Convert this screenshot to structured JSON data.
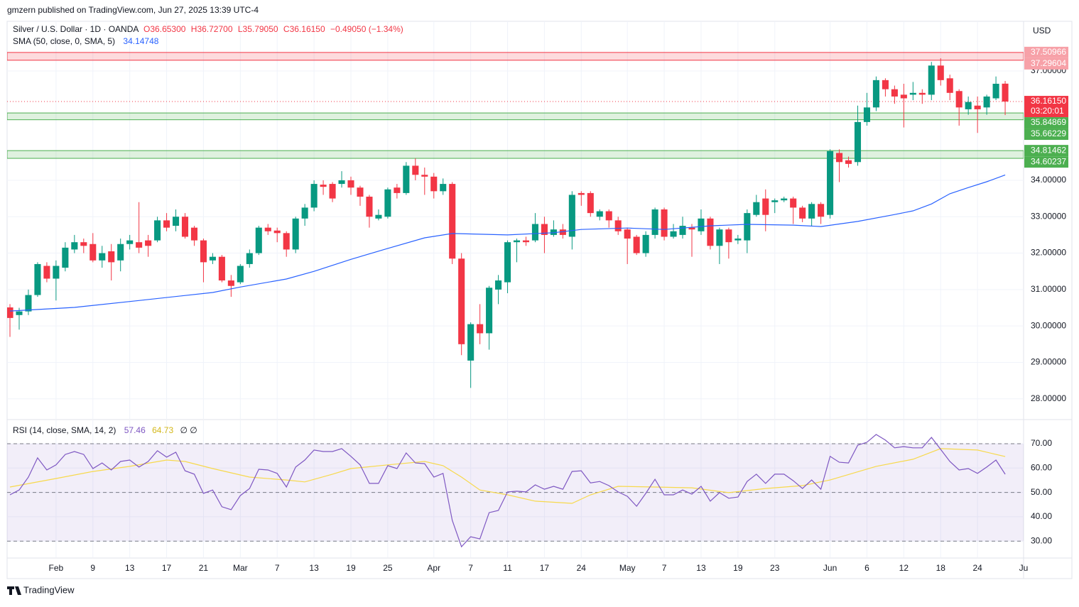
{
  "header": {
    "published": "gmzern published on TradingView.com, Jun 27, 2025 13:39 UTC-4"
  },
  "footer": {
    "brand": "TradingView"
  },
  "chart_data": {
    "type": "candlestick",
    "title": "Silver / U.S. Dollar · 1D · OANDA",
    "ohlc_legend": {
      "open": "O36.65300",
      "high": "H36.72700",
      "low": "L35.79050",
      "close": "C36.16150",
      "change": "−0.49050 (−1.34%)"
    },
    "currency": "USD",
    "up_color": "#089981",
    "down_color": "#f23645",
    "open": [
      30.51,
      30.3,
      30.4,
      30.85,
      31.65,
      31.3,
      31.6,
      32.1,
      32.3,
      32.25,
      31.8,
      32.05,
      31.8,
      32.25,
      32.3,
      32.35,
      32.35,
      32.9,
      32.75,
      33.0,
      32.7,
      32.35,
      31.8,
      31.9,
      31.25,
      31.2,
      31.7,
      32.0,
      32.7,
      32.62,
      32.55,
      32.1,
      32.95,
      33.25,
      33.88,
      33.9,
      33.9,
      34.0,
      33.8,
      33.55,
      32.95,
      33.0,
      33.8,
      33.65,
      34.4,
      34.15,
      34.1,
      33.7,
      33.9,
      31.85,
      29.05,
      30.05,
      29.8,
      31.0,
      31.2,
      32.3,
      32.35,
      32.35,
      32.8,
      32.5,
      32.65,
      32.45,
      33.65,
      33.65,
      33.0,
      33.15,
      32.9,
      32.65,
      32.45,
      32.0,
      32.5,
      33.2,
      32.45,
      32.5,
      32.7,
      32.6,
      32.95,
      32.2,
      32.65,
      32.35,
      32.35,
      33.05,
      33.5,
      33.4,
      33.45,
      33.5,
      33.25,
      32.95,
      33.35,
      33.05,
      34.75,
      34.55,
      34.5,
      35.6,
      36.0,
      36.75,
      36.5,
      36.35,
      36.35,
      36.4,
      36.35,
      37.15,
      36.8,
      36.45,
      35.95,
      36.05,
      36.0,
      36.25,
      36.653
    ],
    "high": [
      30.6,
      30.5,
      31.0,
      31.75,
      31.75,
      31.8,
      32.3,
      32.5,
      32.4,
      32.55,
      32.2,
      32.25,
      32.4,
      32.5,
      33.4,
      32.5,
      33.0,
      33.1,
      33.2,
      33.1,
      32.75,
      32.4,
      32.0,
      31.95,
      31.4,
      31.7,
      32.1,
      32.75,
      32.8,
      32.7,
      32.6,
      33.0,
      33.35,
      34.0,
      34.0,
      33.95,
      34.25,
      34.1,
      33.85,
      33.6,
      33.2,
      33.8,
      33.9,
      34.5,
      34.6,
      34.35,
      34.2,
      34.05,
      33.95,
      32.0,
      30.1,
      30.6,
      31.1,
      31.4,
      32.35,
      32.4,
      32.45,
      33.1,
      33.0,
      32.9,
      32.8,
      33.7,
      33.7,
      33.7,
      33.2,
      33.2,
      33.0,
      32.7,
      32.5,
      32.6,
      33.25,
      33.25,
      32.8,
      33.0,
      32.8,
      33.2,
      33.0,
      32.7,
      32.7,
      32.5,
      33.2,
      33.6,
      33.75,
      33.5,
      33.55,
      33.55,
      33.3,
      33.4,
      33.4,
      34.85,
      34.85,
      34.65,
      36.05,
      36.4,
      36.85,
      36.8,
      36.6,
      36.65,
      36.7,
      36.5,
      37.25,
      37.35,
      36.9,
      36.5,
      36.3,
      36.3,
      36.35,
      36.85,
      36.727
    ],
    "low": [
      29.7,
      29.9,
      30.3,
      30.8,
      31.2,
      30.7,
      31.5,
      32.0,
      32.0,
      31.75,
      31.6,
      31.25,
      31.5,
      32.1,
      32.0,
      31.9,
      32.3,
      32.6,
      32.6,
      32.4,
      32.2,
      31.2,
      31.7,
      31.2,
      30.8,
      31.15,
      31.6,
      31.95,
      32.5,
      32.3,
      31.9,
      32.0,
      32.75,
      33.15,
      33.6,
      33.4,
      33.8,
      33.6,
      33.3,
      32.7,
      32.9,
      32.95,
      33.5,
      33.6,
      34.0,
      33.6,
      33.5,
      33.6,
      31.7,
      29.2,
      28.3,
      29.5,
      29.35,
      30.6,
      30.9,
      31.75,
      32.2,
      32.3,
      32.0,
      32.45,
      32.4,
      32.1,
      33.3,
      33.0,
      32.9,
      32.7,
      32.5,
      31.7,
      31.95,
      31.9,
      32.4,
      32.35,
      32.4,
      32.4,
      31.9,
      32.5,
      32.1,
      31.7,
      31.85,
      32.25,
      32.0,
      33.0,
      32.6,
      33.1,
      33.4,
      32.8,
      32.85,
      32.75,
      32.8,
      32.95,
      33.95,
      34.35,
      34.4,
      35.5,
      35.9,
      36.3,
      36.1,
      35.45,
      36.2,
      36.1,
      36.2,
      36.6,
      36.2,
      35.5,
      35.8,
      35.3,
      35.8,
      36.2,
      35.7905
    ],
    "close": [
      30.22,
      30.4,
      30.85,
      31.7,
      31.3,
      31.65,
      32.15,
      32.3,
      32.2,
      31.8,
      32.0,
      31.75,
      32.25,
      32.35,
      32.15,
      32.2,
      32.9,
      32.7,
      33.0,
      32.45,
      32.35,
      31.75,
      31.9,
      31.25,
      31.1,
      31.65,
      32.0,
      32.7,
      32.6,
      32.55,
      32.1,
      32.95,
      33.25,
      33.9,
      33.82,
      33.5,
      34.0,
      33.8,
      33.55,
      33.0,
      33.05,
      33.75,
      33.65,
      34.4,
      34.15,
      34.1,
      33.7,
      33.9,
      31.85,
      29.5,
      30.05,
      29.8,
      31.05,
      31.25,
      32.3,
      32.35,
      32.3,
      32.8,
      32.5,
      32.65,
      32.5,
      33.6,
      33.6,
      33.1,
      33.15,
      32.9,
      32.6,
      32.4,
      32.0,
      32.5,
      33.2,
      32.45,
      32.6,
      32.75,
      32.65,
      32.95,
      32.2,
      32.65,
      32.3,
      32.4,
      33.1,
      33.4,
      33.05,
      33.45,
      33.5,
      33.25,
      32.95,
      33.35,
      33.0,
      34.8,
      34.5,
      34.45,
      35.6,
      36.0,
      36.75,
      36.5,
      36.3,
      36.25,
      36.4,
      36.35,
      37.15,
      36.75,
      36.4,
      36.0,
      36.15,
      35.95,
      36.3,
      36.65,
      36.1615
    ],
    "xlim": [
      -0.31,
      110.0
    ],
    "xticks": [
      {
        "value": 5,
        "label": "Feb"
      },
      9,
      13,
      17,
      21,
      {
        "value": 25,
        "label": "Mar"
      },
      {
        "value": 29,
        "label": "7"
      },
      {
        "value": 33,
        "label": "13"
      },
      {
        "value": 37,
        "label": "19"
      },
      {
        "value": 41,
        "label": "25"
      },
      {
        "value": 46,
        "label": "Apr"
      },
      {
        "value": 50,
        "label": "7"
      },
      {
        "value": 54,
        "label": "11"
      },
      {
        "value": 58,
        "label": "17"
      },
      {
        "value": 62,
        "label": "24"
      },
      {
        "value": 67,
        "label": "May"
      },
      {
        "value": 71,
        "label": "7"
      },
      {
        "value": 75,
        "label": "13"
      },
      {
        "value": 79,
        "label": "19"
      },
      {
        "value": 83,
        "label": "23"
      },
      {
        "value": 89,
        "label": "Jun"
      },
      {
        "value": 93,
        "label": "6"
      },
      {
        "value": 97,
        "label": "12"
      },
      {
        "value": 101,
        "label": "18"
      },
      {
        "value": 105,
        "label": "24"
      },
      {
        "value": 110,
        "label": "Ju"
      }
    ],
    "ylim": [
      27.45,
      38.365
    ],
    "yticks": [
      {
        "value": 28,
        "label": "28.00000"
      },
      {
        "value": 29,
        "label": "29.00000"
      },
      {
        "value": 30,
        "label": "30.00000"
      },
      {
        "value": 31,
        "label": "31.00000"
      },
      {
        "value": 32,
        "label": "32.00000"
      },
      {
        "value": 33,
        "label": "33.00000"
      },
      {
        "value": 34,
        "label": "34.00000"
      },
      {
        "value": 37,
        "label": "37.00000"
      }
    ],
    "grid": true,
    "sma": {
      "name": "SMA (50, close, 0, SMA, 5)",
      "color": "#2962ff",
      "x": [
        0,
        7,
        14,
        22,
        25,
        30,
        33,
        37,
        41,
        45,
        48,
        54,
        59,
        62,
        67,
        71,
        76,
        80,
        85,
        88,
        92,
        96,
        98,
        100,
        102,
        104,
        106,
        108
      ],
      "values": [
        30.41,
        30.51,
        30.7,
        30.92,
        31.07,
        31.29,
        31.5,
        31.83,
        32.13,
        32.42,
        32.54,
        32.5,
        32.56,
        32.65,
        32.69,
        32.65,
        32.75,
        32.79,
        32.77,
        32.73,
        32.87,
        33.06,
        33.16,
        33.35,
        33.63,
        33.8,
        33.96,
        34.14748
      ]
    },
    "zones": [
      {
        "top": 37.50966,
        "bottom": 37.29604,
        "color": "#f23645"
      },
      {
        "top": 35.84869,
        "bottom": 35.66229,
        "color": "#4caf50"
      },
      {
        "top": 34.81462,
        "bottom": 34.60237,
        "color": "#4caf50"
      }
    ],
    "last_price": {
      "value": 36.1615,
      "label": "36.16150",
      "countdown": "03:20:01"
    },
    "rsi": {
      "title": "RSI (14, close, SMA, 14, 2)",
      "color": "#7e57c2",
      "extra": "∅ ∅",
      "values": [
        49.0,
        51.0,
        56.3,
        64.2,
        59.2,
        61.3,
        65.6,
        66.8,
        65.6,
        59.8,
        62.1,
        59.2,
        62.7,
        63.3,
        60.4,
        62.7,
        67.1,
        64.5,
        66.5,
        58.9,
        57.5,
        49.6,
        51.0,
        44.1,
        42.9,
        48.7,
        51.6,
        59.5,
        59.2,
        57.8,
        52.2,
        60.4,
        63.3,
        67.4,
        66.8,
        66.8,
        68.0,
        64.8,
        61.3,
        53.7,
        53.7,
        61.0,
        59.8,
        66.2,
        62.1,
        61.8,
        56.3,
        57.8,
        38.5,
        27.7,
        31.8,
        30.9,
        41.7,
        42.6,
        50.2,
        50.5,
        50.2,
        53.1,
        51.3,
        52.5,
        51.3,
        58.6,
        58.9,
        53.9,
        54.5,
        52.8,
        50.2,
        48.4,
        44.3,
        49.6,
        55.4,
        49.0,
        49.0,
        51.0,
        49.3,
        52.5,
        46.4,
        49.9,
        47.6,
        48.1,
        54.5,
        57.5,
        53.7,
        57.5,
        57.5,
        54.8,
        51.6,
        55.1,
        51.3,
        64.8,
        62.4,
        62.1,
        69.4,
        70.6,
        73.8,
        71.5,
        68.3,
        68.8,
        68.3,
        68.3,
        72.6,
        67.7,
        62.7,
        59.2,
        59.8,
        57.8,
        60.4,
        63.3,
        57.46
      ],
      "sma": {
        "color": "#f7d94c",
        "x": [
          0,
          5,
          9,
          13,
          17,
          19,
          22,
          26,
          30,
          32,
          35,
          37,
          41,
          45,
          47,
          49,
          51,
          54,
          57,
          61,
          63,
          66,
          70,
          74,
          78,
          82,
          86,
          89,
          94,
          98,
          101,
          105,
          108
        ],
        "values": [
          52.2,
          55.7,
          58.6,
          60.7,
          63.3,
          62.7,
          59.8,
          56.3,
          55.1,
          54.3,
          57.5,
          59.8,
          61.3,
          62.7,
          61.0,
          56.3,
          51.0,
          49.0,
          46.4,
          45.5,
          49.0,
          52.5,
          52.2,
          51.9,
          49.9,
          51.6,
          52.8,
          55.1,
          60.7,
          63.6,
          68.0,
          67.4,
          64.73
        ]
      },
      "ylim": [
        23.35,
        79.62
      ],
      "yticks": [
        {
          "value": 30,
          "label": "30.00"
        },
        {
          "value": 40,
          "label": "40.00"
        },
        {
          "value": 50,
          "label": "50.00"
        },
        {
          "value": 60,
          "label": "60.00"
        },
        {
          "value": 70,
          "label": "70.00"
        }
      ],
      "levels": [
        70,
        50,
        30
      ]
    }
  }
}
